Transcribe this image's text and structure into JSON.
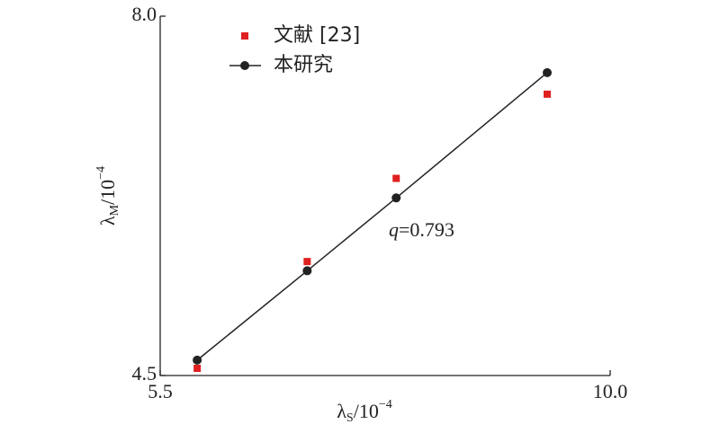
{
  "chart_data": {
    "type": "line",
    "x": [
      5.87,
      6.97,
      7.86,
      9.37
    ],
    "series": [
      {
        "name": "文献 [23]",
        "color": "#e02020",
        "mode": "markers",
        "values": [
          4.57,
          5.61,
          6.42,
          7.24
        ]
      },
      {
        "name": "本研究",
        "color": "#222222",
        "mode": "lines+markers",
        "values": [
          4.65,
          5.52,
          6.23,
          7.45
        ]
      }
    ],
    "xlim": [
      5.5,
      10
    ],
    "xticks": [
      5.5,
      {
        "value": 10,
        "label": "10.0"
      }
    ],
    "ylim": [
      4.5,
      8
    ],
    "yticks": [
      4.5,
      {
        "value": 8,
        "label": "8.0"
      }
    ],
    "xlabel": {
      "symbol": "λ",
      "subscript": "S",
      "text": "/10",
      "superscript": "−4"
    },
    "ylabel": {
      "symbol": "λ",
      "subscript": "M",
      "text": "/10",
      "superscript": "−4"
    },
    "annotation": {
      "variable": "q",
      "text": "=0.793"
    }
  }
}
